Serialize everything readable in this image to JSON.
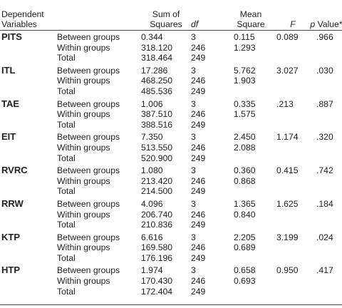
{
  "header": {
    "dependent_variables": "Dependent\nVariables",
    "sum_of_squares": "Sum of\nSquares",
    "df": "df",
    "mean_square": "Mean\nSquare",
    "f": "F",
    "p_value_p": "p",
    "p_value_rest": " Value*"
  },
  "groups": [
    {
      "name": "PITS",
      "rows": [
        {
          "source": "Between groups",
          "ss": "0.344",
          "df": "3",
          "ms": "0.115",
          "f": "0.089",
          "p": ".966"
        },
        {
          "source": "Within groups",
          "ss": "318.120",
          "df": "246",
          "ms": "1.293",
          "f": "",
          "p": ""
        },
        {
          "source": "Total",
          "ss": "318.464",
          "df": "249",
          "ms": "",
          "f": "",
          "p": ""
        }
      ]
    },
    {
      "name": "ITL",
      "rows": [
        {
          "source": "Between groups",
          "ss": "17.286",
          "df": "3",
          "ms": "5.762",
          "f": "3.027",
          "p": ".030"
        },
        {
          "source": "Within groups",
          "ss": "468.250",
          "df": "246",
          "ms": "1.903",
          "f": "",
          "p": ""
        },
        {
          "source": "Total",
          "ss": "485.536",
          "df": "249",
          "ms": "",
          "f": "",
          "p": ""
        }
      ]
    },
    {
      "name": "TAE",
      "rows": [
        {
          "source": "Between groups",
          "ss": "1.006",
          "df": "3",
          "ms": "0.335",
          "f": ".213",
          "p": ".887"
        },
        {
          "source": "Within groups",
          "ss": "387.510",
          "df": "246",
          "ms": "1.575",
          "f": "",
          "p": ""
        },
        {
          "source": "Total",
          "ss": "388.516",
          "df": "249",
          "ms": "",
          "f": "",
          "p": ""
        }
      ]
    },
    {
      "name": "EIT",
      "rows": [
        {
          "source": "Between groups",
          "ss": "7.350",
          "df": "3",
          "ms": "2.450",
          "f": "1.174",
          "p": ".320"
        },
        {
          "source": "Within groups",
          "ss": "513.550",
          "df": "246",
          "ms": "2.088",
          "f": "",
          "p": ""
        },
        {
          "source": "Total",
          "ss": "520.900",
          "df": "249",
          "ms": "",
          "f": "",
          "p": ""
        }
      ]
    },
    {
      "name": "RVRC",
      "rows": [
        {
          "source": "Between groups",
          "ss": "1.080",
          "df": "3",
          "ms": "0.360",
          "f": "0.415",
          "p": ".742"
        },
        {
          "source": "Within groups",
          "ss": "213.420",
          "df": "246",
          "ms": "0.868",
          "f": "",
          "p": ""
        },
        {
          "source": "Total",
          "ss": "214.500",
          "df": "249",
          "ms": "",
          "f": "",
          "p": ""
        }
      ]
    },
    {
      "name": "RRW",
      "rows": [
        {
          "source": "Between groups",
          "ss": "4.096",
          "df": "3",
          "ms": "1.365",
          "f": "1.625",
          "p": ".184"
        },
        {
          "source": "Within groups",
          "ss": "206.740",
          "df": "246",
          "ms": "0.840",
          "f": "",
          "p": ""
        },
        {
          "source": "Total",
          "ss": "210.836",
          "df": "249",
          "ms": "",
          "f": "",
          "p": ""
        }
      ]
    },
    {
      "name": "KTP",
      "rows": [
        {
          "source": "Between groups",
          "ss": "6.616",
          "df": "3",
          "ms": "2.205",
          "f": "3.199",
          "p": ".024"
        },
        {
          "source": "Within groups",
          "ss": "169.580",
          "df": "246",
          "ms": "0.689",
          "f": "",
          "p": ""
        },
        {
          "source": "Total",
          "ss": "176.196",
          "df": "249",
          "ms": "",
          "f": "",
          "p": ""
        }
      ]
    },
    {
      "name": "HTP",
      "rows": [
        {
          "source": "Between groups",
          "ss": "1.974",
          "df": "3",
          "ms": "0.658",
          "f": "0.950",
          "p": ".417"
        },
        {
          "source": "Within groups",
          "ss": "170.430",
          "df": "246",
          "ms": "0.693",
          "f": "",
          "p": ""
        },
        {
          "source": "Total",
          "ss": "172.404",
          "df": "249",
          "ms": "",
          "f": "",
          "p": ""
        }
      ]
    }
  ]
}
